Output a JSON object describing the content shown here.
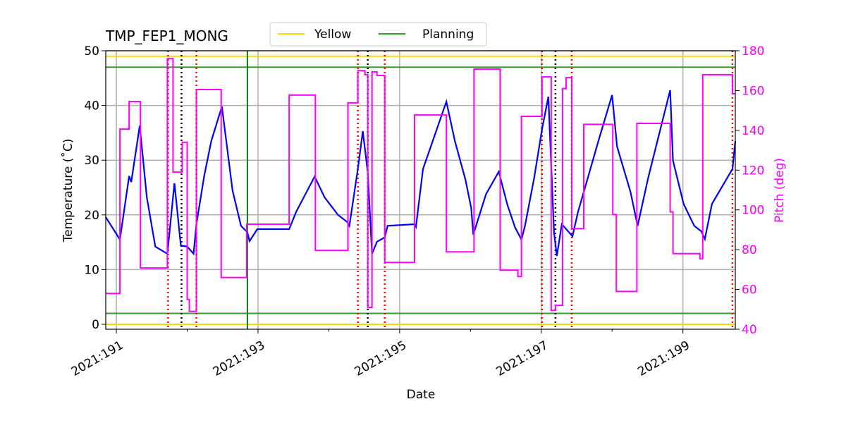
{
  "chart_data": {
    "type": "line",
    "title": "TMP_FEP1_MONG",
    "xlabel": "Date",
    "ylabel": "Temperature ($^\\circ$C)",
    "ylabel_display": "Temperature (˚C)",
    "y2label": "Pitch (deg)",
    "xlim": [
      190.85,
      199.74
    ],
    "ylim": [
      -0.9,
      50
    ],
    "y2lim": [
      40,
      180
    ],
    "xticks": [
      191,
      193,
      195,
      197,
      199
    ],
    "xtick_labels": [
      "2021:191",
      "2021:193",
      "2021:195",
      "2021:197",
      "2021:199"
    ],
    "xminor_ticks": [
      192,
      194,
      196,
      198
    ],
    "yticks": [
      0,
      10,
      20,
      30,
      40,
      50
    ],
    "ytick_labels": [
      "0",
      "10",
      "20",
      "30",
      "40",
      "50"
    ],
    "y2ticks": [
      40,
      60,
      80,
      100,
      120,
      140,
      160,
      180
    ],
    "y2tick_labels": [
      "40",
      "60",
      "80",
      "100",
      "120",
      "140",
      "160",
      "180"
    ],
    "grid": true,
    "legend": {
      "placement": "top-center-outside",
      "entries": [
        {
          "name": "Yellow",
          "color": "#ffd700"
        },
        {
          "name": "Planning",
          "color": "#2ca02c"
        }
      ]
    },
    "colors": {
      "temperature": "#0000ff",
      "pitch": "#ff00ff",
      "yellow": "#ffd700",
      "planning": "#2ca02c",
      "vline_planning": "#008000",
      "red_dotted": "#ff0000",
      "black_dotted": "#000000",
      "right_axis": "#ff00ff"
    },
    "yellow_limits": [
      49,
      0
    ],
    "planning_limits": [
      47,
      2
    ],
    "planning_vline_day": 192.85,
    "red_dotted_days": [
      191.73,
      192.13,
      194.41,
      194.79,
      197.01,
      197.43,
      199.7
    ],
    "black_dotted_days": [
      191.92,
      194.55,
      197.2
    ],
    "series": [
      {
        "axis": "left",
        "style": "line",
        "points": [
          [
            190.85,
            19.6
          ],
          [
            191.05,
            15.5
          ],
          [
            191.18,
            27.1
          ],
          [
            191.21,
            26.0
          ],
          [
            191.33,
            36.3
          ],
          [
            191.43,
            23.2
          ],
          [
            191.55,
            14.2
          ],
          [
            191.72,
            12.9
          ],
          [
            191.82,
            25.8
          ],
          [
            191.91,
            14.4
          ],
          [
            192.0,
            14.2
          ],
          [
            192.09,
            12.9
          ],
          [
            192.13,
            18.3
          ],
          [
            192.24,
            27.1
          ],
          [
            192.34,
            33.5
          ],
          [
            192.49,
            39.8
          ],
          [
            192.64,
            24.5
          ],
          [
            192.76,
            18.0
          ],
          [
            192.85,
            16.8
          ],
          [
            192.88,
            15.2
          ],
          [
            192.99,
            17.4
          ],
          [
            193.44,
            17.4
          ],
          [
            193.54,
            20.6
          ],
          [
            193.8,
            27.0
          ],
          [
            193.94,
            23.2
          ],
          [
            194.13,
            20.0
          ],
          [
            194.26,
            18.7
          ],
          [
            194.29,
            18.0
          ],
          [
            194.41,
            28.4
          ],
          [
            194.48,
            35.3
          ],
          [
            194.55,
            27.7
          ],
          [
            194.61,
            12.9
          ],
          [
            194.68,
            15.1
          ],
          [
            194.79,
            15.9
          ],
          [
            194.83,
            18.0
          ],
          [
            195.21,
            18.3
          ],
          [
            195.23,
            17.8
          ],
          [
            195.33,
            28.4
          ],
          [
            195.66,
            40.7
          ],
          [
            195.78,
            33.5
          ],
          [
            195.93,
            26.4
          ],
          [
            196.01,
            21.3
          ],
          [
            196.04,
            16.4
          ],
          [
            196.22,
            23.8
          ],
          [
            196.4,
            27.9
          ],
          [
            196.52,
            21.9
          ],
          [
            196.63,
            17.7
          ],
          [
            196.72,
            15.5
          ],
          [
            196.77,
            18.0
          ],
          [
            196.9,
            26.8
          ],
          [
            197.01,
            35.6
          ],
          [
            197.1,
            41.6
          ],
          [
            197.18,
            16.8
          ],
          [
            197.22,
            12.5
          ],
          [
            197.29,
            18.3
          ],
          [
            197.44,
            16.1
          ],
          [
            197.52,
            20.6
          ],
          [
            197.82,
            34.1
          ],
          [
            198.0,
            41.9
          ],
          [
            198.07,
            32.5
          ],
          [
            198.26,
            24.2
          ],
          [
            198.36,
            18.0
          ],
          [
            198.51,
            26.8
          ],
          [
            198.82,
            42.8
          ],
          [
            198.86,
            29.9
          ],
          [
            199.01,
            22.0
          ],
          [
            199.16,
            18.0
          ],
          [
            199.26,
            17.0
          ],
          [
            199.31,
            15.6
          ],
          [
            199.41,
            22.0
          ],
          [
            199.7,
            28.4
          ],
          [
            199.74,
            33.5
          ]
        ]
      },
      {
        "axis": "right",
        "style": "step",
        "points": [
          [
            190.85,
            58
          ],
          [
            191.05,
            140.6
          ],
          [
            191.18,
            154.5
          ],
          [
            191.34,
            70.8
          ],
          [
            191.72,
            176
          ],
          [
            191.8,
            119
          ],
          [
            191.93,
            134
          ],
          [
            192.0,
            55
          ],
          [
            192.03,
            49
          ],
          [
            192.13,
            160.5
          ],
          [
            192.48,
            66
          ],
          [
            192.84,
            92.8
          ],
          [
            193.44,
            157.7
          ],
          [
            193.81,
            79.6
          ],
          [
            194.27,
            153.8
          ],
          [
            194.41,
            170
          ],
          [
            194.51,
            168
          ],
          [
            194.55,
            51
          ],
          [
            194.61,
            169.4
          ],
          [
            194.68,
            167.6
          ],
          [
            194.79,
            73.6
          ],
          [
            195.21,
            147.7
          ],
          [
            195.66,
            78.9
          ],
          [
            196.05,
            170.8
          ],
          [
            196.42,
            69.7
          ],
          [
            196.67,
            66.5
          ],
          [
            196.72,
            147
          ],
          [
            197.01,
            166.9
          ],
          [
            197.14,
            49.5
          ],
          [
            197.2,
            52
          ],
          [
            197.3,
            161
          ],
          [
            197.35,
            166.5
          ],
          [
            197.43,
            90.6
          ],
          [
            197.6,
            143
          ],
          [
            198.01,
            97.7
          ],
          [
            198.06,
            59
          ],
          [
            198.35,
            143.5
          ],
          [
            198.82,
            99
          ],
          [
            198.86,
            78
          ],
          [
            199.24,
            75.4
          ],
          [
            199.28,
            168
          ],
          [
            199.7,
            158.4
          ],
          [
            199.74,
            158.4
          ]
        ]
      }
    ]
  }
}
